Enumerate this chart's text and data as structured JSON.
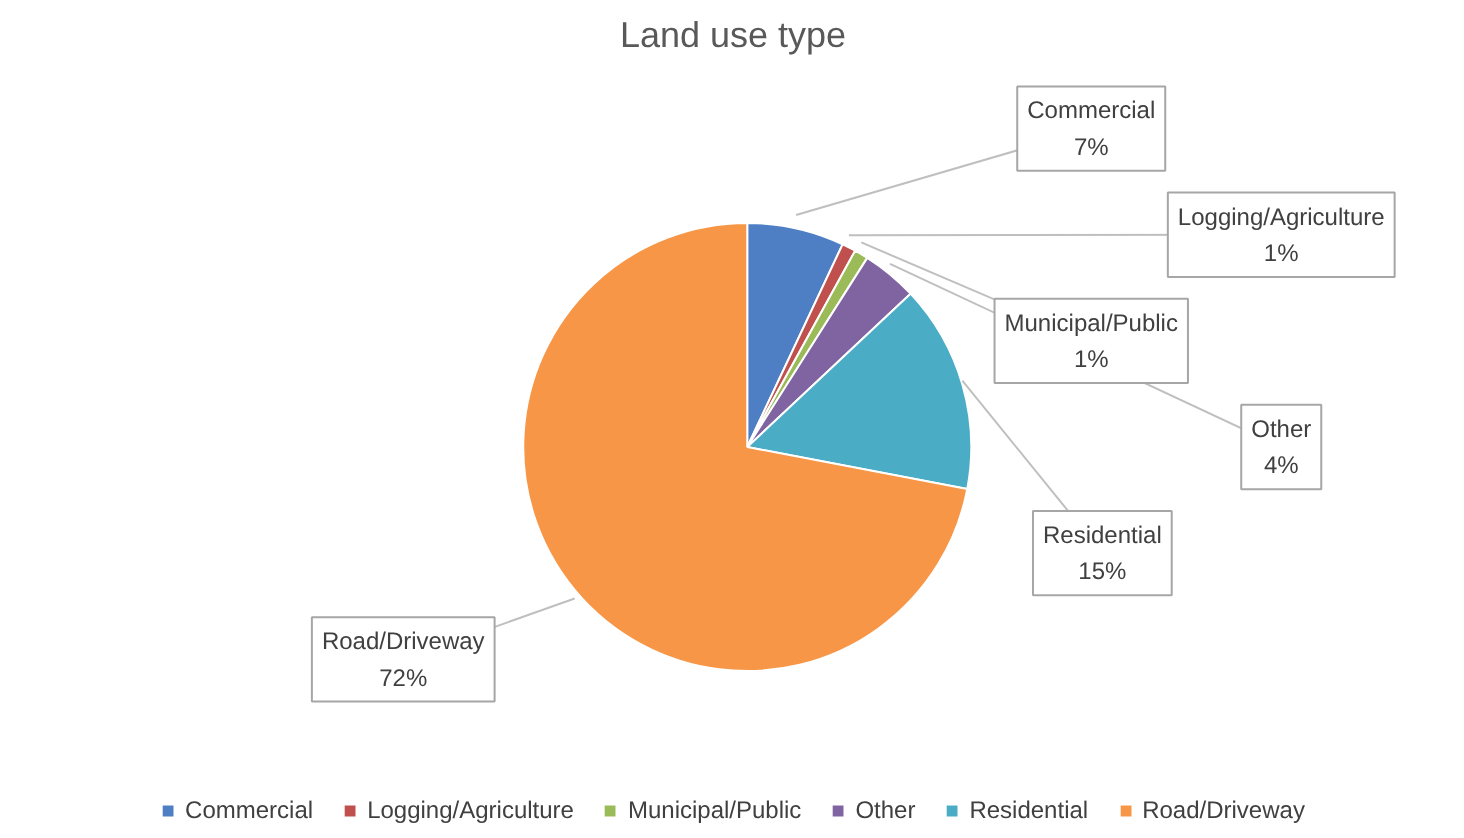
{
  "chart_data": {
    "type": "pie",
    "title": "Land use type",
    "categories": [
      "Commercial",
      "Logging/Agriculture",
      "Municipal/Public",
      "Other",
      "Residential",
      "Road/Driveway"
    ],
    "values": [
      7,
      1,
      1,
      4,
      15,
      72
    ],
    "value_labels": [
      "7%",
      "1%",
      "1%",
      "4%",
      "15%",
      "72%"
    ],
    "colors": [
      "#4e7fc4",
      "#c0504d",
      "#9bbb59",
      "#8064a2",
      "#4bacc6",
      "#f79646"
    ],
    "legend": "bottom"
  }
}
